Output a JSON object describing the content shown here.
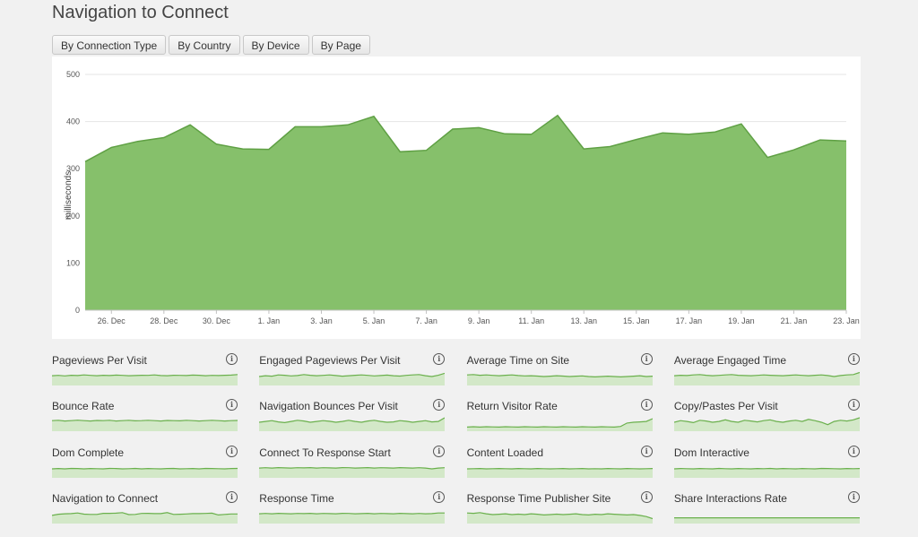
{
  "page": {
    "title": "Navigation to Connect"
  },
  "tabs": [
    {
      "label": "By Connection Type"
    },
    {
      "label": "By Country"
    },
    {
      "label": "By Device"
    },
    {
      "label": "By Page"
    }
  ],
  "colors": {
    "area_fill": "#86c06b",
    "area_line": "#5fa044",
    "spark_fill": "#d3e8c8",
    "spark_line": "#6ab04c"
  },
  "chart_data": {
    "type": "area",
    "ylabel": "milliseconds",
    "xlabel": "",
    "ylim": [
      0,
      500
    ],
    "yticks": [
      0,
      100,
      200,
      300,
      400,
      500
    ],
    "x_tick_labels": [
      "26. Dec",
      "28. Dec",
      "30. Dec",
      "1. Jan",
      "3. Jan",
      "5. Jan",
      "7. Jan",
      "9. Jan",
      "11. Jan",
      "13. Jan",
      "15. Jan",
      "17. Jan",
      "19. Jan",
      "21. Jan",
      "23. Jan"
    ],
    "x_tick_day_index": [
      1,
      3,
      5,
      7,
      9,
      11,
      13,
      15,
      17,
      19,
      21,
      23,
      25,
      27,
      29
    ],
    "values": [
      315,
      345,
      358,
      366,
      393,
      352,
      342,
      341,
      389,
      389,
      393,
      411,
      336,
      339,
      384,
      387,
      374,
      373,
      413,
      342,
      347,
      362,
      376,
      373,
      378,
      395,
      324,
      340,
      361,
      359
    ],
    "grid": "horizontal",
    "legend": "none"
  },
  "metrics": [
    {
      "label": "Pageviews Per Visit",
      "trend": [
        0.55,
        0.57,
        0.54,
        0.58,
        0.56,
        0.6,
        0.57,
        0.55,
        0.58,
        0.56,
        0.59,
        0.57,
        0.55,
        0.56,
        0.58,
        0.57,
        0.6,
        0.56,
        0.55,
        0.58,
        0.57,
        0.56,
        0.59,
        0.58,
        0.55,
        0.57,
        0.56,
        0.58,
        0.59,
        0.62
      ]
    },
    {
      "label": "Engaged Pageviews Per Visit",
      "trend": [
        0.5,
        0.55,
        0.52,
        0.6,
        0.58,
        0.54,
        0.56,
        0.62,
        0.58,
        0.55,
        0.57,
        0.6,
        0.56,
        0.52,
        0.55,
        0.58,
        0.6,
        0.57,
        0.54,
        0.56,
        0.59,
        0.55,
        0.53,
        0.57,
        0.6,
        0.62,
        0.55,
        0.5,
        0.58,
        0.7
      ]
    },
    {
      "label": "Average Time on Site",
      "trend": [
        0.6,
        0.62,
        0.58,
        0.6,
        0.57,
        0.55,
        0.58,
        0.6,
        0.56,
        0.54,
        0.55,
        0.53,
        0.5,
        0.52,
        0.55,
        0.53,
        0.5,
        0.52,
        0.54,
        0.5,
        0.48,
        0.5,
        0.52,
        0.5,
        0.48,
        0.5,
        0.52,
        0.55,
        0.5,
        0.52
      ]
    },
    {
      "label": "Average Engaged Time",
      "trend": [
        0.55,
        0.58,
        0.56,
        0.6,
        0.62,
        0.58,
        0.55,
        0.57,
        0.6,
        0.62,
        0.58,
        0.56,
        0.55,
        0.57,
        0.6,
        0.58,
        0.56,
        0.55,
        0.58,
        0.6,
        0.57,
        0.55,
        0.58,
        0.6,
        0.56,
        0.5,
        0.56,
        0.6,
        0.62,
        0.75
      ]
    },
    {
      "label": "Bounce Rate",
      "trend": [
        0.6,
        0.62,
        0.58,
        0.6,
        0.63,
        0.6,
        0.58,
        0.61,
        0.6,
        0.62,
        0.58,
        0.6,
        0.62,
        0.59,
        0.6,
        0.62,
        0.6,
        0.58,
        0.61,
        0.6,
        0.59,
        0.62,
        0.6,
        0.58,
        0.6,
        0.62,
        0.6,
        0.58,
        0.6,
        0.61
      ]
    },
    {
      "label": "Navigation Bounces Per Visit",
      "trend": [
        0.5,
        0.55,
        0.6,
        0.52,
        0.48,
        0.55,
        0.62,
        0.58,
        0.5,
        0.55,
        0.6,
        0.56,
        0.5,
        0.55,
        0.62,
        0.55,
        0.5,
        0.58,
        0.62,
        0.55,
        0.5,
        0.52,
        0.6,
        0.56,
        0.5,
        0.55,
        0.6,
        0.52,
        0.55,
        0.78
      ]
    },
    {
      "label": "Return Visitor Rate",
      "trend": [
        0.2,
        0.22,
        0.2,
        0.22,
        0.21,
        0.2,
        0.22,
        0.21,
        0.2,
        0.22,
        0.21,
        0.2,
        0.22,
        0.21,
        0.2,
        0.22,
        0.21,
        0.2,
        0.22,
        0.21,
        0.2,
        0.22,
        0.21,
        0.2,
        0.24,
        0.45,
        0.5,
        0.52,
        0.55,
        0.72
      ]
    },
    {
      "label": "Copy/Pastes Per Visit",
      "trend": [
        0.5,
        0.6,
        0.55,
        0.48,
        0.62,
        0.58,
        0.5,
        0.55,
        0.65,
        0.55,
        0.5,
        0.62,
        0.58,
        0.52,
        0.6,
        0.65,
        0.55,
        0.5,
        0.58,
        0.62,
        0.55,
        0.68,
        0.6,
        0.5,
        0.35,
        0.55,
        0.62,
        0.58,
        0.65,
        0.78
      ]
    },
    {
      "label": "Dom Complete",
      "trend": [
        0.5,
        0.52,
        0.5,
        0.53,
        0.52,
        0.5,
        0.52,
        0.51,
        0.5,
        0.53,
        0.52,
        0.5,
        0.51,
        0.53,
        0.5,
        0.52,
        0.51,
        0.5,
        0.52,
        0.53,
        0.5,
        0.51,
        0.52,
        0.5,
        0.53,
        0.52,
        0.51,
        0.5,
        0.52,
        0.53
      ]
    },
    {
      "label": "Connect To Response Start",
      "trend": [
        0.55,
        0.57,
        0.55,
        0.58,
        0.56,
        0.55,
        0.57,
        0.56,
        0.58,
        0.55,
        0.57,
        0.56,
        0.55,
        0.58,
        0.57,
        0.55,
        0.56,
        0.58,
        0.55,
        0.57,
        0.56,
        0.55,
        0.58,
        0.56,
        0.55,
        0.57,
        0.55,
        0.5,
        0.55,
        0.57
      ]
    },
    {
      "label": "Content Loaded",
      "trend": [
        0.5,
        0.51,
        0.52,
        0.5,
        0.51,
        0.52,
        0.51,
        0.5,
        0.52,
        0.51,
        0.5,
        0.52,
        0.51,
        0.5,
        0.51,
        0.52,
        0.5,
        0.51,
        0.52,
        0.5,
        0.51,
        0.5,
        0.52,
        0.51,
        0.5,
        0.52,
        0.51,
        0.5,
        0.51,
        0.52
      ]
    },
    {
      "label": "Dom Interactive",
      "trend": [
        0.5,
        0.52,
        0.51,
        0.5,
        0.52,
        0.51,
        0.5,
        0.53,
        0.51,
        0.5,
        0.52,
        0.51,
        0.5,
        0.52,
        0.51,
        0.53,
        0.5,
        0.52,
        0.51,
        0.5,
        0.52,
        0.51,
        0.5,
        0.53,
        0.52,
        0.51,
        0.5,
        0.52,
        0.51,
        0.52
      ]
    },
    {
      "label": "Navigation to Connect",
      "trend": [
        0.45,
        0.52,
        0.55,
        0.56,
        0.6,
        0.53,
        0.51,
        0.51,
        0.58,
        0.58,
        0.59,
        0.62,
        0.5,
        0.51,
        0.57,
        0.58,
        0.56,
        0.56,
        0.62,
        0.51,
        0.52,
        0.54,
        0.56,
        0.56,
        0.57,
        0.59,
        0.48,
        0.51,
        0.54,
        0.54
      ]
    },
    {
      "label": "Response Time",
      "trend": [
        0.55,
        0.57,
        0.55,
        0.58,
        0.56,
        0.55,
        0.57,
        0.56,
        0.58,
        0.55,
        0.57,
        0.56,
        0.55,
        0.58,
        0.57,
        0.55,
        0.56,
        0.58,
        0.55,
        0.57,
        0.56,
        0.55,
        0.58,
        0.56,
        0.55,
        0.57,
        0.55,
        0.56,
        0.6,
        0.6
      ]
    },
    {
      "label": "Response Time Publisher Site",
      "trend": [
        0.6,
        0.58,
        0.62,
        0.55,
        0.5,
        0.52,
        0.55,
        0.5,
        0.53,
        0.5,
        0.55,
        0.52,
        0.48,
        0.5,
        0.53,
        0.5,
        0.52,
        0.55,
        0.5,
        0.48,
        0.52,
        0.5,
        0.55,
        0.52,
        0.5,
        0.48,
        0.5,
        0.45,
        0.38,
        0.25
      ]
    },
    {
      "label": "Share Interactions Rate",
      "trend": [
        0.3,
        0.3,
        0.3,
        0.3,
        0.3,
        0.3,
        0.3,
        0.3,
        0.3,
        0.3,
        0.3,
        0.3,
        0.3,
        0.3,
        0.3,
        0.3,
        0.3,
        0.3,
        0.3,
        0.3,
        0.3,
        0.3,
        0.3,
        0.3,
        0.3,
        0.3,
        0.3,
        0.3,
        0.3,
        0.3
      ]
    }
  ],
  "info_icon_glyph": "i"
}
